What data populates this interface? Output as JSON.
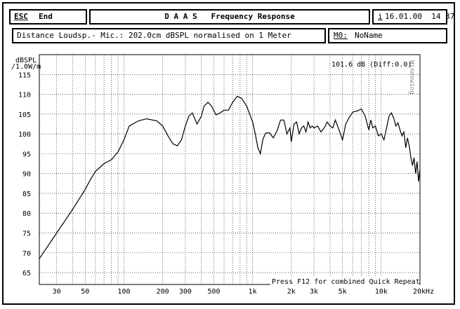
{
  "header": {
    "esc_label": "ESC",
    "end_label": "End",
    "title": "D A A S   Frequency Response",
    "info_key": "i",
    "datetime": "16.01.00  14 37"
  },
  "subheader": {
    "measurement": "Distance Loudsp.- Mic.: 202.0cm dBSPL normalised on 1 Meter",
    "memory_key": "M0:",
    "memory_name": "NoName"
  },
  "chart_data": {
    "type": "line",
    "xscale": "log",
    "xlim": [
      22,
      20000
    ],
    "ylim": [
      62,
      120
    ],
    "ylabel_line1": "dBSPL",
    "ylabel_line2": "/1.0W/m",
    "yticks": [
      65,
      70,
      75,
      80,
      85,
      90,
      95,
      100,
      105,
      110,
      115
    ],
    "xticks": [
      {
        "v": 30,
        "label": "30"
      },
      {
        "v": 50,
        "label": "50"
      },
      {
        "v": 100,
        "label": "100"
      },
      {
        "v": 200,
        "label": "200"
      },
      {
        "v": 300,
        "label": "300"
      },
      {
        "v": 500,
        "label": "500"
      },
      {
        "v": 1000,
        "label": "1k"
      },
      {
        "v": 2000,
        "label": "2k"
      },
      {
        "v": 3000,
        "label": "3k"
      },
      {
        "v": 5000,
        "label": "5k"
      },
      {
        "v": 10000,
        "label": "10k"
      },
      {
        "v": 20000,
        "label": "20kHz"
      }
    ],
    "readout": "101.6 dB (Diff:0.0)",
    "side_label": "Windowing",
    "footer_hint": "Press F12 for combined Quick Repeat",
    "grid": true,
    "series": [
      {
        "color": "#000000",
        "x": [
          22,
          30,
          40,
          50,
          55,
          60,
          70,
          80,
          90,
          100,
          110,
          130,
          150,
          180,
          200,
          220,
          240,
          260,
          280,
          300,
          320,
          340,
          370,
          400,
          420,
          450,
          480,
          520,
          560,
          600,
          650,
          700,
          760,
          820,
          900,
          1000,
          1050,
          1100,
          1150,
          1200,
          1260,
          1350,
          1450,
          1550,
          1650,
          1750,
          1850,
          1950,
          2000,
          2100,
          2200,
          2300,
          2400,
          2500,
          2600,
          2700,
          2800,
          2900,
          3000,
          3200,
          3400,
          3600,
          3800,
          4000,
          4200,
          4400,
          4700,
          5000,
          5300,
          5600,
          6000,
          6500,
          7000,
          7500,
          8000,
          8300,
          8600,
          9000,
          9500,
          10000,
          10500,
          11000,
          11500,
          12000,
          12500,
          13000,
          13500,
          14000,
          14500,
          15000,
          15500,
          16000,
          16500,
          17000,
          17500,
          18000,
          18500,
          19000,
          19500,
          20000
        ],
        "y": [
          68.5,
          75,
          81,
          86,
          88.5,
          90.5,
          92.5,
          93.5,
          95.5,
          98.5,
          102,
          103.3,
          103.8,
          103.3,
          102,
          99.5,
          97.5,
          97,
          98.5,
          102,
          104.5,
          105.3,
          102.5,
          104.5,
          107,
          108,
          107,
          104.8,
          105.3,
          106,
          106,
          108,
          109.5,
          109,
          107,
          103,
          100,
          96.5,
          95,
          98.5,
          100.2,
          100.3,
          99,
          100.8,
          103.5,
          103.5,
          100,
          101.5,
          98,
          102.5,
          103,
          100,
          101.5,
          102,
          100.5,
          103,
          101.5,
          102,
          101.5,
          102,
          100.5,
          101.5,
          103,
          102,
          101.5,
          103.5,
          101,
          98.5,
          102.5,
          104,
          105.5,
          105.8,
          106.3,
          104.5,
          101,
          103.5,
          101.5,
          102,
          99.5,
          100,
          98.5,
          101.5,
          104.5,
          105.3,
          104,
          102,
          102.8,
          101,
          99.5,
          100.5,
          96.5,
          99,
          97,
          94,
          92,
          94,
          90,
          93,
          88,
          91
        ]
      }
    ]
  }
}
